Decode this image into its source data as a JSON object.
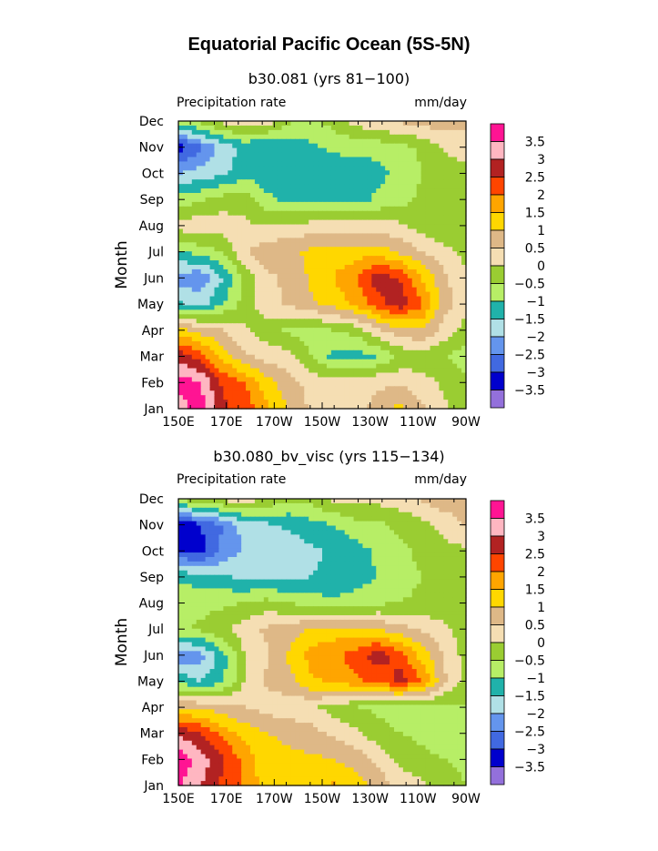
{
  "title": "Equatorial Pacific Ocean (5S-5N)",
  "chart_data": [
    {
      "type": "heatmap",
      "title": "b30.081 (yrs 81−100)",
      "variable": "Precipitation rate",
      "units": "mm/day",
      "ylabel": "Month",
      "x_ticks": [
        "150E",
        "170E",
        "170W",
        "150W",
        "130W",
        "110W",
        "90W"
      ],
      "y_ticks": [
        "Jan",
        "Feb",
        "Mar",
        "Apr",
        "May",
        "Jun",
        "Jul",
        "Aug",
        "Sep",
        "Oct",
        "Nov",
        "Dec"
      ],
      "contour_levels": [
        "3.5",
        "3",
        "2.5",
        "2",
        "1.5",
        "1",
        "0.5",
        "0",
        "−0.5",
        "−1",
        "−1.5",
        "−2",
        "−2.5",
        "−3",
        "−3.5"
      ],
      "level_colors": [
        "#ff1493",
        "#ffb6c1",
        "#b22222",
        "#ff4500",
        "#ffa500",
        "#ffd700",
        "#deb887",
        "#f5deb3",
        "#9acd32",
        "#b7ee66",
        "#20b2aa",
        "#b0e0e6",
        "#6495ed",
        "#4169e1",
        "#0000cd",
        "#9370db"
      ],
      "values": [
        [
          3.2,
          3.8,
          2.6,
          2.3,
          1.6,
          1.0,
          0.4,
          0.1,
          0.2,
          0.7,
          1.2,
          0.6,
          0.1,
          -0.2
        ],
        [
          3.8,
          3.5,
          2.4,
          2.0,
          1.2,
          0.7,
          0.3,
          0.2,
          0.3,
          0.4,
          0.4,
          0.2,
          -0.1,
          -0.4
        ],
        [
          2.8,
          2.2,
          1.3,
          0.6,
          0.3,
          0.2,
          -0.5,
          -1.2,
          -1.3,
          -1.0,
          -0.4,
          -0.3,
          -0.4,
          -0.8
        ],
        [
          1.2,
          0.8,
          0.5,
          0.1,
          -0.3,
          -0.6,
          -0.7,
          -0.5,
          -0.3,
          0.4,
          0.8,
          1.0,
          0.3,
          -0.2
        ],
        [
          -1.4,
          -1.7,
          -1.0,
          -0.3,
          0.3,
          0.6,
          0.9,
          1.2,
          1.6,
          2.3,
          2.8,
          2.1,
          0.7,
          0.2
        ],
        [
          -2.3,
          -2.4,
          -1.5,
          -0.4,
          0.4,
          0.6,
          1.1,
          1.5,
          2.0,
          2.8,
          2.5,
          1.5,
          0.6,
          0.1
        ],
        [
          -1.0,
          -0.8,
          -0.5,
          0.5,
          0.8,
          0.9,
          1.1,
          1.2,
          1.2,
          1.3,
          0.9,
          0.5,
          0.2,
          -0.2
        ],
        [
          0.2,
          0.4,
          0.3,
          0.1,
          0.0,
          0.1,
          0.2,
          0.2,
          0.3,
          0.2,
          0.1,
          -0.2,
          -0.5,
          -0.4
        ],
        [
          -0.8,
          -0.6,
          -0.3,
          -0.2,
          -0.9,
          -1.1,
          -1.2,
          -1.2,
          -1.2,
          -0.9,
          -0.7,
          -0.4,
          -0.3,
          -0.2
        ],
        [
          -2.0,
          -1.8,
          -1.6,
          -1.2,
          -1.3,
          -1.1,
          -1.4,
          -1.3,
          -1.4,
          -1.2,
          -0.8,
          -0.5,
          -0.3,
          -0.2
        ],
        [
          -3.3,
          -2.6,
          -1.8,
          -1.4,
          -1.5,
          -1.3,
          -1.1,
          -0.9,
          -0.8,
          -0.8,
          -0.7,
          -0.4,
          0.1,
          0.3
        ],
        [
          -0.6,
          -0.3,
          0.2,
          0.5,
          0.3,
          -0.4,
          -0.6,
          -0.3,
          0.2,
          0.5,
          0.6,
          0.7,
          0.8,
          0.6
        ]
      ]
    },
    {
      "type": "heatmap",
      "title": "b30.080_bv_visc (yrs 115−134)",
      "variable": "Precipitation rate",
      "units": "mm/day",
      "ylabel": "Month",
      "x_ticks": [
        "150E",
        "170E",
        "170W",
        "150W",
        "130W",
        "110W",
        "90W"
      ],
      "y_ticks": [
        "Jan",
        "Feb",
        "Mar",
        "Apr",
        "May",
        "Jun",
        "Jul",
        "Aug",
        "Sep",
        "Oct",
        "Nov",
        "Dec"
      ],
      "contour_levels": [
        "3.5",
        "3",
        "2.5",
        "2",
        "1.5",
        "1",
        "0.5",
        "0",
        "−0.5",
        "−1",
        "−1.5",
        "−2",
        "−2.5",
        "−3",
        "−3.5"
      ],
      "level_colors": [
        "#ff1493",
        "#ffb6c1",
        "#b22222",
        "#ff4500",
        "#ffa500",
        "#ffd700",
        "#deb887",
        "#f5deb3",
        "#9acd32",
        "#b7ee66",
        "#20b2aa",
        "#b0e0e6",
        "#6495ed",
        "#4169e1",
        "#0000cd",
        "#9370db"
      ],
      "values": [
        [
          3.6,
          3.0,
          2.4,
          1.9,
          1.2,
          1.1,
          1.0,
          1.6,
          1.3,
          0.8,
          0.4,
          0.1,
          -0.3,
          -0.5
        ],
        [
          3.9,
          3.3,
          2.6,
          1.8,
          1.2,
          1.1,
          1.1,
          1.0,
          0.8,
          0.4,
          -0.2,
          -0.4,
          -0.5,
          -0.6
        ],
        [
          2.9,
          2.5,
          1.8,
          1.3,
          1.0,
          0.9,
          0.7,
          0.4,
          0.1,
          -0.3,
          -0.5,
          -0.6,
          -0.7,
          -0.6
        ],
        [
          1.0,
          0.9,
          0.7,
          0.5,
          0.3,
          0.2,
          0.1,
          -0.2,
          -0.5,
          -0.6,
          -0.7,
          -0.6,
          -0.6,
          -0.5
        ],
        [
          -1.2,
          -1.5,
          -1.1,
          0.0,
          0.6,
          0.8,
          1.4,
          1.6,
          1.9,
          2.1,
          2.7,
          2.0,
          0.6,
          -0.2
        ],
        [
          -2.3,
          -2.2,
          -1.2,
          0.0,
          0.4,
          1.1,
          1.7,
          1.9,
          2.2,
          2.8,
          2.3,
          1.3,
          0.5,
          -0.2
        ],
        [
          -0.6,
          -0.4,
          -0.1,
          0.3,
          0.6,
          0.7,
          1.1,
          1.2,
          1.1,
          1.0,
          0.7,
          0.4,
          0.1,
          -0.3
        ],
        [
          -0.5,
          -0.7,
          -0.6,
          -0.5,
          -0.3,
          -0.5,
          -0.7,
          -0.9,
          -0.8,
          -0.6,
          -0.5,
          -0.4,
          -0.3,
          -0.2
        ],
        [
          -1.1,
          -1.3,
          -1.4,
          -1.6,
          -1.6,
          -1.7,
          -1.5,
          -1.4,
          -1.2,
          -1.0,
          -0.7,
          -0.5,
          -0.3,
          -0.2
        ],
        [
          -3.1,
          -3.2,
          -2.4,
          -1.9,
          -1.7,
          -1.8,
          -1.6,
          -1.4,
          -1.2,
          -0.9,
          -0.6,
          -0.4,
          -0.2,
          -0.1
        ],
        [
          -3.6,
          -3.0,
          -2.5,
          -1.8,
          -1.6,
          -1.4,
          -1.2,
          -1.0,
          -0.7,
          -0.6,
          -0.4,
          -0.2,
          0.2,
          0.6
        ],
        [
          -0.4,
          0.0,
          0.2,
          0.3,
          0.0,
          -0.4,
          -0.3,
          0.1,
          0.2,
          0.2,
          0.3,
          0.6,
          0.8,
          0.7
        ]
      ]
    }
  ]
}
